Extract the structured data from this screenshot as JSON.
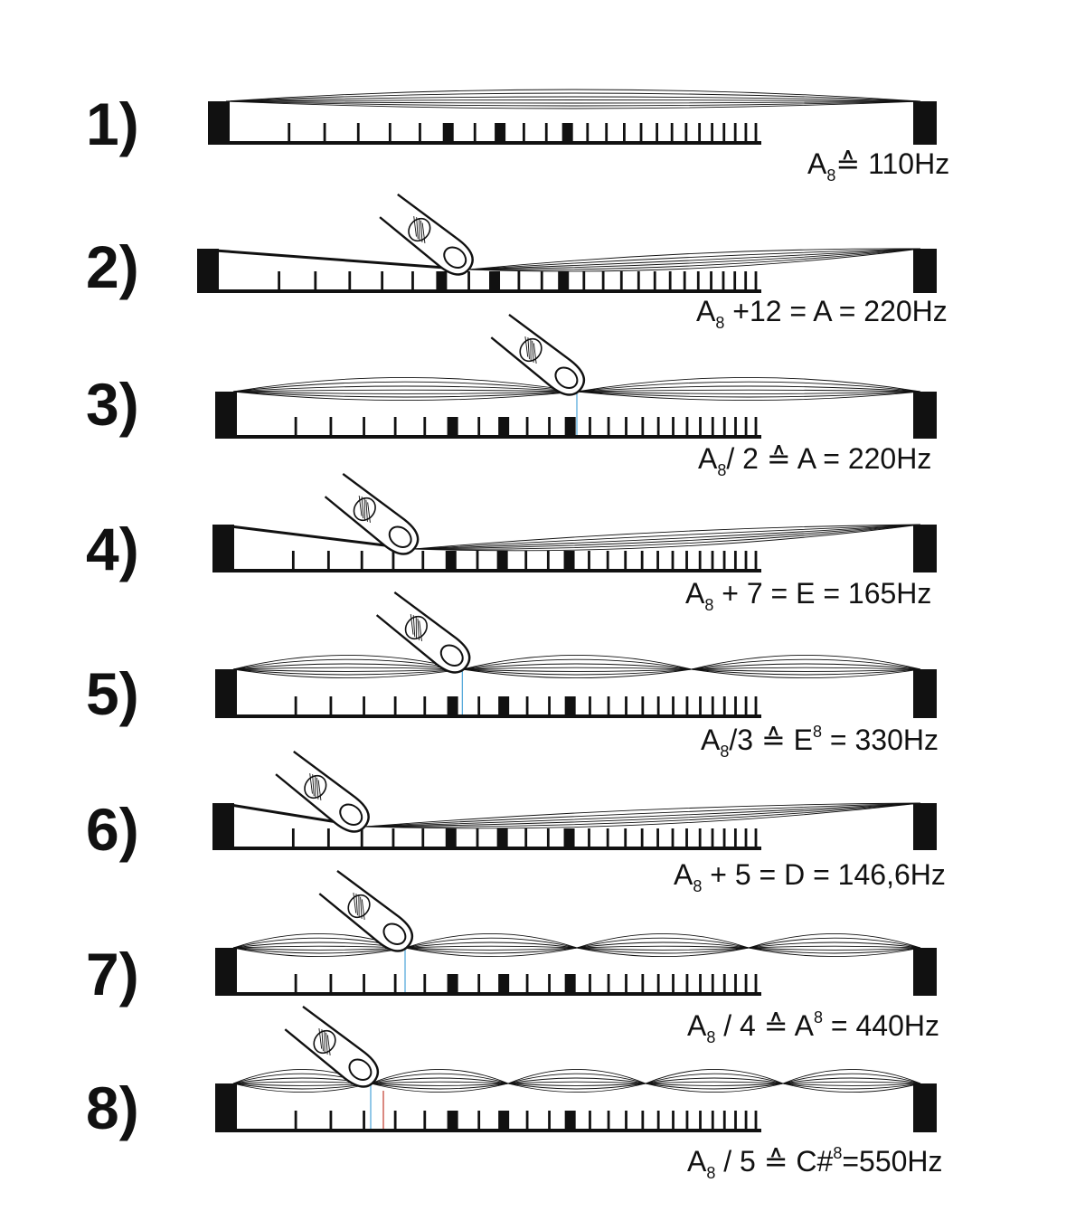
{
  "colors": {
    "ink": "#111111",
    "marker_blue": "#4aa3d8",
    "marker_red": "#c0392b"
  },
  "rows": [
    {
      "number": "1)",
      "pressed": false,
      "segments": 1,
      "label": {
        "sym": "A",
        "sub": "8",
        "rest": "≙ 110Hz"
      }
    },
    {
      "number": "2)",
      "pressed": true,
      "mode": "fret",
      "stop_fraction": 0.5,
      "segments": 1,
      "label": {
        "sym": "A",
        "sub": "8",
        "rest": " +12 = A = 220Hz"
      }
    },
    {
      "number": "3)",
      "pressed": true,
      "mode": "harmonic",
      "stop_fraction": 0.5,
      "segments": 2,
      "label": {
        "sym": "A",
        "sub": "8",
        "rest": "/ 2 ≙ A = 220Hz"
      }
    },
    {
      "number": "4)",
      "pressed": true,
      "mode": "fret",
      "stop_fraction": 0.333,
      "segments": 1,
      "label": {
        "sym": "A",
        "sub": "8",
        "rest": " + 7 = E = 165Hz"
      }
    },
    {
      "number": "5)",
      "pressed": true,
      "mode": "harmonic",
      "stop_fraction": 0.333,
      "segments": 3,
      "label": {
        "sym": "A",
        "sub": "8",
        "rest": "/3 ≙  E",
        "sup": "8",
        "rest2": "  = 330Hz"
      }
    },
    {
      "number": "6)",
      "pressed": true,
      "mode": "fret",
      "stop_fraction": 0.25,
      "segments": 1,
      "label": {
        "sym": "A",
        "sub": "8",
        "rest": " + 5 = D = 146,6Hz"
      }
    },
    {
      "number": "7)",
      "pressed": true,
      "mode": "harmonic",
      "stop_fraction": 0.25,
      "segments": 4,
      "label": {
        "sym": "A",
        "sub": "8",
        "rest": " / 4 ≙ A",
        "sup": "8",
        "rest2": " = 440Hz"
      }
    },
    {
      "number": "8)",
      "pressed": true,
      "mode": "harmonic",
      "stop_fraction": 0.2,
      "segments": 5,
      "label": {
        "sym": "A",
        "sub": "8",
        "rest": " / 5 ≙ C#",
        "sup": "8",
        "rest2": "=550Hz"
      }
    }
  ]
}
